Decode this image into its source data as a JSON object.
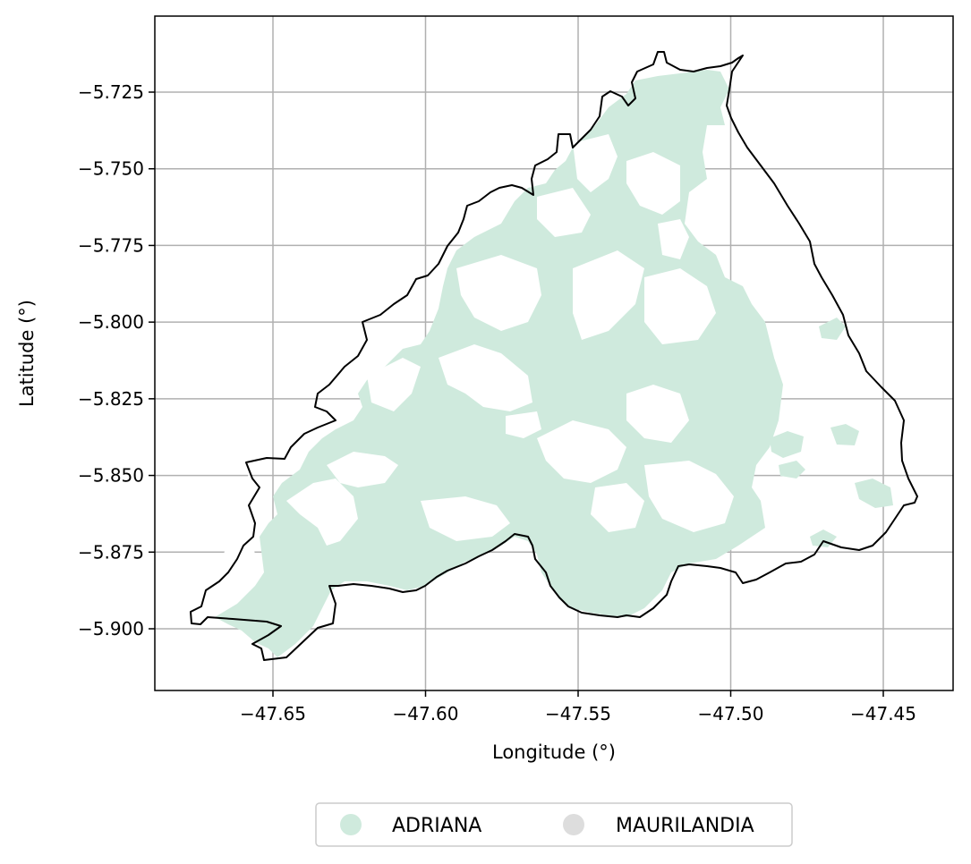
{
  "chart_data": {
    "type": "map",
    "xlabel": "Longitude (°)",
    "ylabel": "Latitude (°)",
    "xlim": [
      -47.69,
      -47.43
    ],
    "ylim": [
      -5.92,
      -5.7
    ],
    "xticks": [
      -47.65,
      -47.6,
      -47.55,
      -47.5,
      -47.45
    ],
    "yticks": [
      -5.725,
      -5.75,
      -5.775,
      -5.8,
      -5.825,
      -5.85,
      -5.875,
      -5.9
    ],
    "xtick_labels": [
      "−47.65",
      "−47.60",
      "−47.55",
      "−47.50",
      "−47.45"
    ],
    "ytick_labels": [
      "−5.725",
      "−5.750",
      "−5.775",
      "−5.800",
      "−5.825",
      "−5.850",
      "−5.875",
      "−5.900"
    ],
    "grid": true,
    "legend_placement": "bottom-center",
    "legend": [
      {
        "label": "ADRIANA",
        "color": "#cfeadd"
      },
      {
        "label": "MAURILANDIA",
        "color": "#dddddd"
      }
    ],
    "outline_color": "#000000"
  }
}
